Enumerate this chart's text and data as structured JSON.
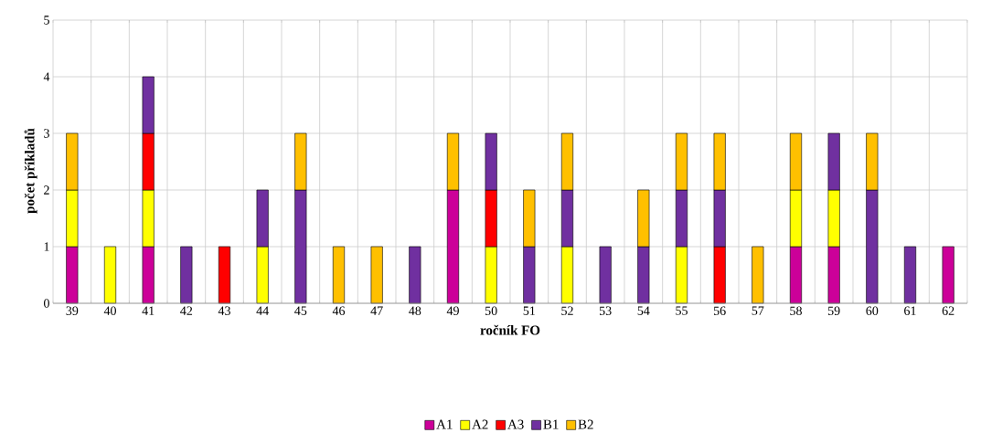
{
  "chart_data": {
    "type": "bar",
    "stacked": true,
    "xlabel": "ročník FO",
    "ylabel": "počet příkladů",
    "categories": [
      "39",
      "40",
      "41",
      "42",
      "43",
      "44",
      "45",
      "46",
      "47",
      "48",
      "49",
      "50",
      "51",
      "52",
      "53",
      "54",
      "55",
      "56",
      "57",
      "58",
      "59",
      "60",
      "61",
      "62"
    ],
    "ylim": [
      0,
      5
    ],
    "yticks": [
      0,
      1,
      2,
      3,
      4,
      5
    ],
    "grid": true,
    "legend": "bottom",
    "series": [
      {
        "name": "A1",
        "color": "#cc0099",
        "values": [
          1,
          null,
          1,
          null,
          null,
          null,
          null,
          null,
          null,
          null,
          2,
          null,
          null,
          null,
          null,
          null,
          null,
          null,
          null,
          1,
          1,
          null,
          null,
          1
        ]
      },
      {
        "name": "A2",
        "color": "#ffff00",
        "values": [
          1,
          1,
          1,
          null,
          null,
          1,
          null,
          null,
          null,
          null,
          null,
          1,
          null,
          1,
          null,
          null,
          1,
          null,
          null,
          1,
          1,
          null,
          null,
          null
        ]
      },
      {
        "name": "A3",
        "color": "#ff0000",
        "values": [
          null,
          null,
          1,
          null,
          1,
          null,
          null,
          null,
          null,
          null,
          null,
          1,
          null,
          null,
          null,
          null,
          null,
          1,
          null,
          null,
          null,
          null,
          null,
          null
        ]
      },
      {
        "name": "B1",
        "color": "#7030a0",
        "values": [
          null,
          null,
          1,
          1,
          null,
          1,
          2,
          null,
          null,
          1,
          null,
          1,
          1,
          1,
          1,
          1,
          1,
          1,
          null,
          null,
          1,
          2,
          1,
          null
        ]
      },
      {
        "name": "B2",
        "color": "#ffc000",
        "values": [
          1,
          null,
          null,
          null,
          null,
          null,
          1,
          1,
          1,
          null,
          1,
          null,
          1,
          1,
          null,
          1,
          1,
          1,
          1,
          1,
          null,
          1,
          null,
          null
        ]
      }
    ]
  }
}
